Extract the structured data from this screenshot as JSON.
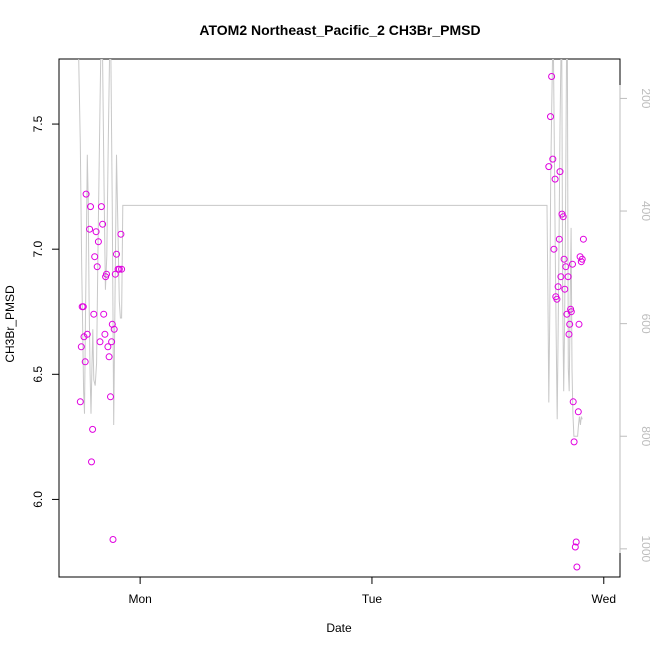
{
  "chart_data": {
    "type": "scatter",
    "title": "ATOM2 Northeast_Pacific_2 CH3Br_PMSD",
    "xlabel": "Date",
    "ylabel": "CH3Br_PMSD",
    "x_ticks": [
      {
        "label": "Mon",
        "value": 1.0
      },
      {
        "label": "Tue",
        "value": 2.0
      },
      {
        "label": "Wed",
        "value": 3.0
      }
    ],
    "xlim": [
      0.65,
      3.07
    ],
    "ylim": [
      5.69,
      7.76
    ],
    "y_ticks": [
      6.0,
      6.5,
      7.0,
      7.5
    ],
    "y_tick_labels": [
      "6.0",
      "6.5",
      "7.0",
      "7.5"
    ],
    "secondary_axis": {
      "label": "",
      "side": "right",
      "ticks": [
        200,
        400,
        600,
        800,
        1000
      ],
      "tick_labels": [
        "200",
        "400",
        "600",
        "800",
        "1000"
      ],
      "lim": [
        1050,
        130
      ],
      "color": "#bdbdbd"
    },
    "point_color": "#e000e0",
    "line_color": "#c8c8c8",
    "grid": false,
    "series": [
      {
        "type": "scatter",
        "points": [
          [
            0.742,
            6.39
          ],
          [
            0.746,
            6.61
          ],
          [
            0.75,
            6.77
          ],
          [
            0.755,
            6.77
          ],
          [
            0.758,
            6.65
          ],
          [
            0.763,
            6.55
          ],
          [
            0.767,
            7.22
          ],
          [
            0.772,
            6.66
          ],
          [
            0.782,
            7.08
          ],
          [
            0.786,
            7.17
          ],
          [
            0.79,
            6.15
          ],
          [
            0.795,
            6.28
          ],
          [
            0.8,
            6.74
          ],
          [
            0.804,
            6.97
          ],
          [
            0.81,
            7.07
          ],
          [
            0.815,
            6.93
          ],
          [
            0.82,
            7.03
          ],
          [
            0.827,
            6.63
          ],
          [
            0.833,
            7.17
          ],
          [
            0.838,
            7.1
          ],
          [
            0.843,
            6.74
          ],
          [
            0.848,
            6.66
          ],
          [
            0.851,
            6.89
          ],
          [
            0.855,
            6.9
          ],
          [
            0.861,
            6.61
          ],
          [
            0.866,
            6.57
          ],
          [
            0.872,
            6.41
          ],
          [
            0.877,
            6.63
          ],
          [
            0.88,
            6.7
          ],
          [
            0.883,
            5.84
          ],
          [
            0.888,
            6.68
          ],
          [
            0.893,
            6.9
          ],
          [
            0.898,
            6.98
          ],
          [
            0.905,
            6.92
          ],
          [
            0.91,
            6.92
          ],
          [
            0.917,
            7.06
          ],
          [
            0.92,
            6.92
          ],
          [
            2.763,
            7.33
          ],
          [
            2.77,
            7.53
          ],
          [
            2.775,
            7.69
          ],
          [
            2.78,
            7.36
          ],
          [
            2.785,
            7.0
          ],
          [
            2.79,
            7.28
          ],
          [
            2.793,
            6.81
          ],
          [
            2.798,
            6.8
          ],
          [
            2.803,
            6.85
          ],
          [
            2.808,
            7.04
          ],
          [
            2.811,
            7.31
          ],
          [
            2.815,
            6.89
          ],
          [
            2.82,
            7.14
          ],
          [
            2.825,
            7.13
          ],
          [
            2.829,
            6.96
          ],
          [
            2.832,
            6.84
          ],
          [
            2.836,
            6.93
          ],
          [
            2.841,
            6.74
          ],
          [
            2.846,
            6.89
          ],
          [
            2.85,
            6.66
          ],
          [
            2.853,
            6.7
          ],
          [
            2.857,
            6.76
          ],
          [
            2.86,
            6.75
          ],
          [
            2.865,
            6.94
          ],
          [
            2.868,
            6.39
          ],
          [
            2.872,
            6.23
          ],
          [
            2.877,
            5.81
          ],
          [
            2.881,
            5.83
          ],
          [
            2.884,
            5.73
          ],
          [
            2.89,
            6.35
          ],
          [
            2.893,
            6.7
          ],
          [
            2.898,
            6.97
          ],
          [
            2.903,
            6.95
          ],
          [
            2.907,
            6.96
          ],
          [
            2.912,
            7.04
          ]
        ]
      },
      {
        "type": "line",
        "axis": "right",
        "points": [
          [
            0.735,
            130
          ],
          [
            0.742,
            280
          ],
          [
            0.748,
            500
          ],
          [
            0.752,
            600
          ],
          [
            0.756,
            720
          ],
          [
            0.76,
            760
          ],
          [
            0.764,
            600
          ],
          [
            0.768,
            450
          ],
          [
            0.772,
            300
          ],
          [
            0.776,
            380
          ],
          [
            0.78,
            560
          ],
          [
            0.784,
            690
          ],
          [
            0.788,
            760
          ],
          [
            0.792,
            680
          ],
          [
            0.796,
            610
          ],
          [
            0.8,
            700
          ],
          [
            0.806,
            710
          ],
          [
            0.812,
            670
          ],
          [
            0.818,
            480
          ],
          [
            0.824,
            300
          ],
          [
            0.83,
            130
          ],
          [
            0.838,
            130
          ],
          [
            0.844,
            350
          ],
          [
            0.85,
            540
          ],
          [
            0.856,
            480
          ],
          [
            0.862,
            300
          ],
          [
            0.868,
            130
          ],
          [
            0.874,
            130
          ],
          [
            0.88,
            400
          ],
          [
            0.886,
            780
          ],
          [
            0.892,
            540
          ],
          [
            0.898,
            300
          ],
          [
            0.904,
            430
          ],
          [
            0.91,
            560
          ],
          [
            0.915,
            590
          ],
          [
            0.92,
            590
          ],
          [
            0.925,
            390
          ],
          [
            0.93,
            390
          ],
          [
            2.755,
            390
          ],
          [
            2.76,
            590
          ],
          [
            2.763,
            740
          ],
          [
            2.767,
            580
          ],
          [
            2.771,
            340
          ],
          [
            2.775,
            230
          ],
          [
            2.779,
            130
          ],
          [
            2.783,
            130
          ],
          [
            2.787,
            300
          ],
          [
            2.791,
            480
          ],
          [
            2.795,
            640
          ],
          [
            2.799,
            770
          ],
          [
            2.803,
            620
          ],
          [
            2.807,
            460
          ],
          [
            2.811,
            250
          ],
          [
            2.815,
            130
          ],
          [
            2.819,
            130
          ],
          [
            2.823,
            560
          ],
          [
            2.827,
            720
          ],
          [
            2.831,
            600
          ],
          [
            2.835,
            420
          ],
          [
            2.839,
            130
          ],
          [
            2.843,
            130
          ],
          [
            2.847,
            680
          ],
          [
            2.851,
            720
          ],
          [
            2.855,
            560
          ],
          [
            2.859,
            430
          ],
          [
            2.863,
            680
          ],
          [
            2.867,
            760
          ],
          [
            2.871,
            800
          ],
          [
            2.875,
            800
          ],
          [
            2.879,
            800
          ],
          [
            2.883,
            800
          ],
          [
            2.887,
            800
          ],
          [
            2.891,
            780
          ],
          [
            2.895,
            765
          ],
          [
            2.899,
            780
          ],
          [
            2.903,
            765
          ],
          [
            2.907,
            770
          ]
        ]
      }
    ]
  }
}
